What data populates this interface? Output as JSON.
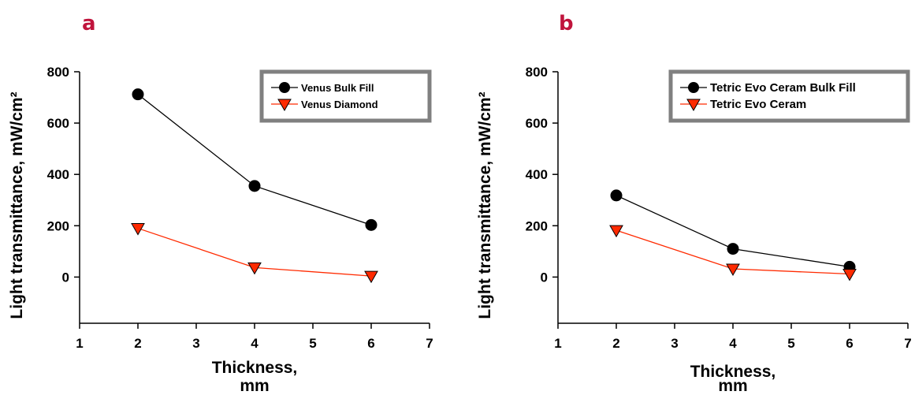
{
  "colors": {
    "panel_letter": "#c0143c",
    "series_1": "#000000",
    "series_2": "#ff2a00",
    "legend_border": "#808080"
  },
  "chart_data": [
    {
      "type": "line",
      "panel_label": "a",
      "xlabel": "Thickness,",
      "xlabel_line2": "mm",
      "ylabel": "Light transmittance, mW/cm²",
      "xlim": [
        1,
        7
      ],
      "ylim": [
        -180,
        800
      ],
      "xticks": [
        1,
        2,
        3,
        4,
        5,
        6,
        7
      ],
      "yticks": [
        0,
        200,
        400,
        600,
        800
      ],
      "legend_position": "top-right",
      "grid": false,
      "series": [
        {
          "name": "Venus Bulk Fill",
          "marker": "circle",
          "x": [
            2,
            4,
            6
          ],
          "y": [
            712,
            355,
            203
          ]
        },
        {
          "name": "Venus Diamond",
          "marker": "triangle-down",
          "x": [
            2,
            4,
            6
          ],
          "y": [
            190,
            37,
            4
          ]
        }
      ]
    },
    {
      "type": "line",
      "panel_label": "b",
      "xlabel": "Thickness,",
      "xlabel_line2": "mm",
      "ylabel": "Light transmittance, mW/cm²",
      "xlim": [
        1,
        7
      ],
      "ylim": [
        -180,
        800
      ],
      "xticks": [
        1,
        2,
        3,
        4,
        5,
        6,
        7
      ],
      "yticks": [
        0,
        200,
        400,
        600,
        800
      ],
      "legend_position": "top-right",
      "grid": false,
      "series": [
        {
          "name": "Tetric Evo Ceram Bulk Fill",
          "marker": "circle",
          "x": [
            2,
            4,
            6
          ],
          "y": [
            318,
            110,
            40
          ]
        },
        {
          "name": "Tetric Evo Ceram",
          "marker": "triangle-down",
          "x": [
            2,
            4,
            6
          ],
          "y": [
            182,
            32,
            12
          ]
        }
      ]
    }
  ]
}
